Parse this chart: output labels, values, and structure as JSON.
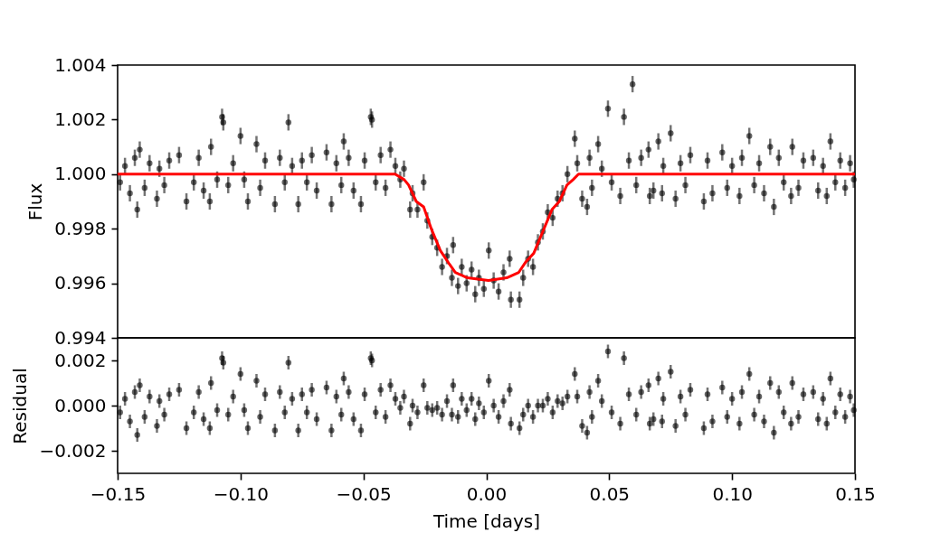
{
  "chart_data": [
    {
      "type": "scatter",
      "ylabel": "Flux",
      "xlim": [
        -0.15,
        0.15
      ],
      "ylim": [
        0.994,
        1.004
      ],
      "yticks": [
        {
          "value": 0.994,
          "label": "0.994"
        },
        {
          "value": 0.996,
          "label": "0.996"
        },
        {
          "value": 0.998,
          "label": "0.998"
        },
        {
          "value": 1.0,
          "label": "1.000"
        },
        {
          "value": 1.002,
          "label": "1.002"
        },
        {
          "value": 1.004,
          "label": "1.004"
        }
      ],
      "tick_labels": "y",
      "series": [
        {
          "color": "#000000",
          "marker": "circle",
          "x": [
            -0.149,
            -0.147,
            -0.145,
            -0.143,
            -0.142,
            -0.141,
            -0.139,
            -0.137,
            -0.134,
            -0.133,
            -0.131,
            -0.129,
            -0.125,
            -0.122,
            -0.119,
            -0.117,
            -0.115,
            -0.1125,
            -0.112,
            -0.1095,
            -0.1075,
            -0.107,
            -0.105,
            -0.103,
            -0.1,
            -0.0985,
            -0.097,
            -0.0935,
            -0.092,
            -0.09,
            -0.086,
            -0.084,
            -0.082,
            -0.0805,
            -0.079,
            -0.0765,
            -0.075,
            -0.073,
            -0.071,
            -0.069,
            -0.065,
            -0.063,
            -0.061,
            -0.059,
            -0.058,
            -0.056,
            -0.054,
            -0.051,
            -0.0495,
            -0.047,
            -0.0465,
            -0.045,
            -0.043,
            -0.041,
            -0.039,
            -0.037,
            -0.035,
            -0.0335,
            -0.031,
            -0.03,
            -0.028,
            -0.0255,
            -0.024,
            -0.022,
            -0.02,
            -0.018,
            -0.016,
            -0.014,
            -0.0135,
            -0.0115,
            -0.01,
            -0.008,
            -0.006,
            -0.0045,
            -0.003,
            -0.001,
            0.001,
            0.003,
            0.005,
            0.007,
            0.0095,
            0.01,
            0.0135,
            0.015,
            0.017,
            0.019,
            0.021,
            0.023,
            0.025,
            0.027,
            0.029,
            0.031,
            0.033,
            0.036,
            0.037,
            0.039,
            0.041,
            0.042,
            0.043,
            0.0455,
            0.047,
            0.0495,
            0.051,
            0.0545,
            0.056,
            0.058,
            0.0595,
            0.061,
            0.063,
            0.066,
            0.0665,
            0.068,
            0.07,
            0.0715,
            0.072,
            0.075,
            0.077,
            0.079,
            0.081,
            0.083,
            0.0885,
            0.09,
            0.092,
            0.096,
            0.098,
            0.1,
            0.103,
            0.104,
            0.107,
            0.109,
            0.111,
            0.113,
            0.1155,
            0.117,
            0.119,
            0.121,
            0.124,
            0.1245,
            0.127,
            0.129,
            0.133,
            0.135,
            0.137,
            0.1385,
            0.14,
            0.142,
            0.144,
            0.146,
            0.148,
            0.1495
          ],
          "values": [
            0.9997,
            1.0003,
            0.9993,
            1.0006,
            0.9987,
            1.0009,
            0.9995,
            1.0004,
            0.9991,
            1.0002,
            0.9996,
            1.0005,
            1.0007,
            0.999,
            0.9997,
            1.0006,
            0.9994,
            0.999,
            1.001,
            0.9998,
            1.0021,
            1.0019,
            0.9996,
            1.0004,
            1.0014,
            0.9998,
            0.999,
            1.0011,
            0.9995,
            1.0005,
            0.9989,
            1.0006,
            0.9997,
            1.0019,
            1.0003,
            0.9989,
            1.0005,
            0.9997,
            1.0007,
            0.9994,
            1.0008,
            0.9989,
            1.0004,
            0.9996,
            1.0012,
            1.0006,
            0.9994,
            0.9989,
            1.0005,
            1.0021,
            1.002,
            0.9997,
            1.0007,
            0.9995,
            1.0009,
            1.0003,
            0.9998,
            1.0002,
            0.9987,
            0.9993,
            0.9987,
            0.9997,
            0.9983,
            0.9977,
            0.9973,
            0.9966,
            0.997,
            0.9962,
            0.9974,
            0.9959,
            0.9966,
            0.996,
            0.9965,
            0.9956,
            0.9962,
            0.9958,
            0.9972,
            0.9961,
            0.9957,
            0.9964,
            0.9969,
            0.9954,
            0.9954,
            0.9962,
            0.9969,
            0.9966,
            0.9975,
            0.9979,
            0.9986,
            0.9984,
            0.9991,
            0.9993,
            1.0,
            1.0013,
            1.0004,
            0.9991,
            0.9988,
            1.0006,
            0.9995,
            1.0011,
            1.0002,
            1.0024,
            0.9997,
            0.9992,
            1.0021,
            1.0005,
            1.0033,
            0.9996,
            1.0006,
            1.0009,
            0.9992,
            0.9994,
            1.0012,
            0.9993,
            1.0003,
            1.0015,
            0.9991,
            1.0004,
            0.9996,
            1.0007,
            0.999,
            1.0005,
            0.9993,
            1.0008,
            0.9995,
            1.0003,
            0.9992,
            1.0006,
            1.0014,
            0.9996,
            1.0004,
            0.9993,
            1.001,
            0.9988,
            1.0006,
            0.9997,
            0.9992,
            1.001,
            0.9995,
            1.0005,
            1.0006,
            0.9994,
            1.0003,
            0.9992,
            1.0012,
            0.9997,
            1.0005,
            0.9995,
            1.0004,
            0.9998
          ],
          "errors": [
            0.0003,
            0.0003,
            0.0003,
            0.0003,
            0.0003,
            0.0003,
            0.0003,
            0.0003,
            0.0003,
            0.0003,
            0.0003,
            0.0003,
            0.0003,
            0.0003,
            0.0003,
            0.0003,
            0.0003,
            0.0003,
            0.0003,
            0.0003,
            0.0003,
            0.0003,
            0.0003,
            0.0003,
            0.0003,
            0.0003,
            0.0003,
            0.0003,
            0.0003,
            0.0003,
            0.0003,
            0.0003,
            0.0003,
            0.0003,
            0.0003,
            0.0003,
            0.0003,
            0.0003,
            0.0003,
            0.0003,
            0.0003,
            0.0003,
            0.0003,
            0.0003,
            0.0003,
            0.0003,
            0.0003,
            0.0003,
            0.0003,
            0.0003,
            0.0003,
            0.0003,
            0.0003,
            0.0003,
            0.0003,
            0.0003,
            0.0003,
            0.0003,
            0.0003,
            0.0003,
            0.0003,
            0.0003,
            0.0003,
            0.0003,
            0.0003,
            0.0003,
            0.0003,
            0.0003,
            0.0003,
            0.0003,
            0.0003,
            0.0003,
            0.0003,
            0.0003,
            0.0003,
            0.0003,
            0.0003,
            0.0003,
            0.0003,
            0.0003,
            0.0003,
            0.0003,
            0.0003,
            0.0003,
            0.0003,
            0.0003,
            0.0003,
            0.0003,
            0.0003,
            0.0003,
            0.0003,
            0.0003,
            0.0003,
            0.0003,
            0.0003,
            0.0003,
            0.0003,
            0.0003,
            0.0003,
            0.0003,
            0.0003,
            0.0003,
            0.0003,
            0.0003,
            0.0003,
            0.0003,
            0.0003,
            0.0003,
            0.0003,
            0.0003,
            0.0003,
            0.0003,
            0.0003,
            0.0003,
            0.0003,
            0.0003,
            0.0003,
            0.0003,
            0.0003,
            0.0003,
            0.0003,
            0.0003,
            0.0003,
            0.0003,
            0.0003,
            0.0003,
            0.0003,
            0.0003,
            0.0003,
            0.0003,
            0.0003,
            0.0003,
            0.0003,
            0.0003,
            0.0003,
            0.0003,
            0.0003,
            0.0003,
            0.0003,
            0.0003,
            0.0003,
            0.0003,
            0.0003,
            0.0003,
            0.0003,
            0.0003,
            0.0003,
            0.0003,
            0.0003,
            0.0003
          ]
        },
        {
          "type": "line",
          "color": "#ff0000",
          "x": [
            -0.15,
            -0.0371,
            -0.0334,
            -0.0316,
            -0.0285,
            -0.0255,
            -0.0224,
            -0.0187,
            -0.015,
            -0.0126,
            -0.0077,
            0.0009,
            0.0083,
            0.0132,
            0.0162,
            0.0193,
            0.023,
            0.0267,
            0.0297,
            0.0328,
            0.0353,
            0.0375,
            0.15
          ],
          "values": [
            1.0,
            1.0,
            0.9998,
            0.9996,
            0.999,
            0.9988,
            0.998,
            0.9972,
            0.9967,
            0.9964,
            0.9962,
            0.9961,
            0.9962,
            0.9964,
            0.9968,
            0.9971,
            0.9979,
            0.9987,
            0.999,
            0.9996,
            0.9998,
            1.0,
            1.0
          ]
        }
      ]
    },
    {
      "type": "scatter",
      "xlabel": "Time [days]",
      "ylabel": "Residual",
      "color": "#000000",
      "marker": "circle",
      "xlim": [
        -0.15,
        0.15
      ],
      "xticks": [
        {
          "value": -0.15,
          "label": "−0.15"
        },
        {
          "value": -0.1,
          "label": "−0.10"
        },
        {
          "value": -0.05,
          "label": "−0.05"
        },
        {
          "value": 0,
          "label": "0.00"
        },
        {
          "value": 0.05,
          "label": "0.05"
        },
        {
          "value": 0.1,
          "label": "0.10"
        },
        {
          "value": 0.15,
          "label": "0.15"
        }
      ],
      "ylim": [
        -0.003,
        0.003
      ],
      "yticks": [
        {
          "value": -0.002,
          "label": "−0.002"
        },
        {
          "value": 0,
          "label": "0.000"
        },
        {
          "value": 0.002,
          "label": "0.002"
        }
      ],
      "x": [
        -0.149,
        -0.147,
        -0.145,
        -0.143,
        -0.142,
        -0.141,
        -0.139,
        -0.137,
        -0.134,
        -0.133,
        -0.131,
        -0.129,
        -0.125,
        -0.122,
        -0.119,
        -0.117,
        -0.115,
        -0.1125,
        -0.112,
        -0.1095,
        -0.1075,
        -0.107,
        -0.105,
        -0.103,
        -0.1,
        -0.0985,
        -0.097,
        -0.0935,
        -0.092,
        -0.09,
        -0.086,
        -0.084,
        -0.082,
        -0.0805,
        -0.079,
        -0.0765,
        -0.075,
        -0.073,
        -0.071,
        -0.069,
        -0.065,
        -0.063,
        -0.061,
        -0.059,
        -0.058,
        -0.056,
        -0.054,
        -0.051,
        -0.0495,
        -0.047,
        -0.0465,
        -0.045,
        -0.043,
        -0.041,
        -0.039,
        -0.037,
        -0.035,
        -0.0335,
        -0.031,
        -0.03,
        -0.028,
        -0.0255,
        -0.024,
        -0.022,
        -0.02,
        -0.018,
        -0.016,
        -0.014,
        -0.0135,
        -0.0115,
        -0.01,
        -0.008,
        -0.006,
        -0.0045,
        -0.003,
        -0.001,
        0.001,
        0.003,
        0.005,
        0.007,
        0.0095,
        0.01,
        0.0135,
        0.015,
        0.017,
        0.019,
        0.021,
        0.023,
        0.025,
        0.027,
        0.029,
        0.031,
        0.033,
        0.036,
        0.037,
        0.039,
        0.041,
        0.042,
        0.043,
        0.0455,
        0.047,
        0.0495,
        0.051,
        0.0545,
        0.056,
        0.058,
        0.0595,
        0.061,
        0.063,
        0.066,
        0.0665,
        0.068,
        0.07,
        0.0715,
        0.072,
        0.075,
        0.077,
        0.079,
        0.081,
        0.083,
        0.0885,
        0.09,
        0.092,
        0.096,
        0.098,
        0.1,
        0.103,
        0.104,
        0.107,
        0.109,
        0.111,
        0.113,
        0.1155,
        0.117,
        0.119,
        0.121,
        0.124,
        0.1245,
        0.127,
        0.129,
        0.133,
        0.135,
        0.137,
        0.1385,
        0.14,
        0.142,
        0.144,
        0.146,
        0.148,
        0.1495
      ],
      "values": [
        -0.0003,
        0.0003,
        -0.0007,
        0.0006,
        -0.0013,
        0.0009,
        -0.0005,
        0.0004,
        -0.0009,
        0.0002,
        -0.0004,
        0.0005,
        0.0007,
        -0.001,
        -0.0003,
        0.0006,
        -0.0006,
        -0.001,
        0.001,
        -0.0002,
        0.0021,
        0.0019,
        -0.0004,
        0.0004,
        0.0014,
        -0.0002,
        -0.001,
        0.0011,
        -0.0005,
        0.0005,
        -0.0011,
        0.0006,
        -0.0003,
        0.0019,
        0.0003,
        -0.0011,
        0.0005,
        -0.0003,
        0.0007,
        -0.0006,
        0.0008,
        -0.0011,
        0.0004,
        -0.0004,
        0.0012,
        0.0006,
        -0.0006,
        -0.0011,
        0.0005,
        0.0021,
        0.002,
        -0.0003,
        0.0007,
        -0.0005,
        0.0009,
        0.0003,
        -0.0001,
        0.0004,
        -0.0008,
        0.0,
        -0.0003,
        0.0009,
        -0.0001,
        -0.0002,
        -0.0001,
        -0.0004,
        0.0002,
        -0.0004,
        0.0009,
        -0.0005,
        0.0003,
        -0.0002,
        0.0003,
        -0.0006,
        0.0001,
        -0.0003,
        0.0011,
        0.0,
        -0.0005,
        0.0002,
        0.0007,
        -0.0008,
        -0.001,
        -0.0004,
        0.0,
        -0.0005,
        0.0,
        0.0,
        0.0003,
        -0.0003,
        0.0002,
        0.0001,
        0.0004,
        0.0014,
        0.0004,
        -0.0009,
        -0.0012,
        0.0006,
        -0.0005,
        0.0011,
        0.0002,
        0.0024,
        -0.0003,
        -0.0008,
        0.0021,
        0.0005,
        null,
        -0.0004,
        0.0006,
        0.0009,
        -0.0008,
        -0.0006,
        0.0012,
        -0.0007,
        0.0003,
        0.0015,
        -0.0009,
        0.0004,
        -0.0004,
        0.0007,
        -0.001,
        0.0005,
        -0.0007,
        0.0008,
        -0.0005,
        0.0003,
        -0.0008,
        0.0006,
        0.0014,
        -0.0004,
        0.0004,
        -0.0007,
        0.001,
        -0.0012,
        0.0006,
        -0.0003,
        -0.0008,
        0.001,
        -0.0005,
        0.0005,
        0.0006,
        -0.0006,
        0.0003,
        -0.0008,
        0.0012,
        -0.0003,
        0.0005,
        -0.0005,
        0.0004,
        -0.0002
      ],
      "errors": [
        0.0003,
        0.0003,
        0.0003,
        0.0003,
        0.0003,
        0.0003,
        0.0003,
        0.0003,
        0.0003,
        0.0003,
        0.0003,
        0.0003,
        0.0003,
        0.0003,
        0.0003,
        0.0003,
        0.0003,
        0.0003,
        0.0003,
        0.0003,
        0.0003,
        0.0003,
        0.0003,
        0.0003,
        0.0003,
        0.0003,
        0.0003,
        0.0003,
        0.0003,
        0.0003,
        0.0003,
        0.0003,
        0.0003,
        0.0003,
        0.0003,
        0.0003,
        0.0003,
        0.0003,
        0.0003,
        0.0003,
        0.0003,
        0.0003,
        0.0003,
        0.0003,
        0.0003,
        0.0003,
        0.0003,
        0.0003,
        0.0003,
        0.0003,
        0.0003,
        0.0003,
        0.0003,
        0.0003,
        0.0003,
        0.0003,
        0.0003,
        0.0003,
        0.0003,
        0.0003,
        0.0003,
        0.0003,
        0.0003,
        0.0003,
        0.0003,
        0.0003,
        0.0003,
        0.0003,
        0.0003,
        0.0003,
        0.0003,
        0.0003,
        0.0003,
        0.0003,
        0.0003,
        0.0003,
        0.0003,
        0.0003,
        0.0003,
        0.0003,
        0.0003,
        0.0003,
        0.0003,
        0.0003,
        0.0003,
        0.0003,
        0.0003,
        0.0003,
        0.0003,
        0.0003,
        0.0003,
        0.0003,
        0.0003,
        0.0003,
        0.0003,
        0.0003,
        0.0003,
        0.0003,
        0.0003,
        0.0003,
        0.0003,
        0.0003,
        0.0003,
        0.0003,
        0.0003,
        0.0003,
        null,
        0.0003,
        0.0003,
        0.0003,
        0.0003,
        0.0003,
        0.0003,
        0.0003,
        0.0003,
        0.0003,
        0.0003,
        0.0003,
        0.0003,
        0.0003,
        0.0003,
        0.0003,
        0.0003,
        0.0003,
        0.0003,
        0.0003,
        0.0003,
        0.0003,
        0.0003,
        0.0003,
        0.0003,
        0.0003,
        0.0003,
        0.0003,
        0.0003,
        0.0003,
        0.0003,
        0.0003,
        0.0003,
        0.0003,
        0.0003,
        0.0003,
        0.0003,
        0.0003,
        0.0003,
        0.0003,
        0.0003,
        0.0003,
        0.0003,
        0.0003
      ]
    }
  ]
}
